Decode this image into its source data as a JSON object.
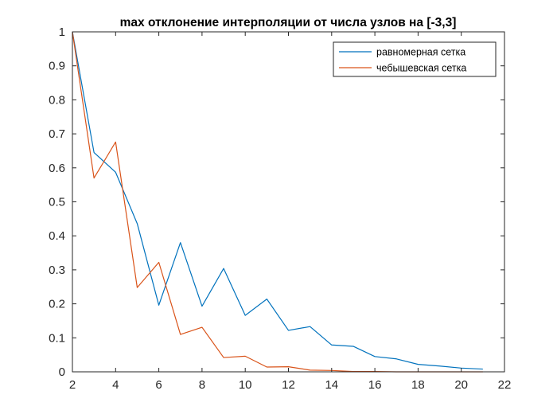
{
  "chart_data": {
    "type": "line",
    "title": "max отклонение интерполяции от числа узлов на [-3,3]",
    "xlabel": "",
    "ylabel": "",
    "xlim": [
      2,
      22
    ],
    "ylim": [
      0,
      1
    ],
    "xticks": [
      "2",
      "4",
      "6",
      "8",
      "10",
      "12",
      "14",
      "16",
      "18",
      "20",
      "22"
    ],
    "yticks": [
      "0",
      "0.1",
      "0.2",
      "0.3",
      "0.4",
      "0.5",
      "0.6",
      "0.7",
      "0.8",
      "0.9",
      "1"
    ],
    "grid": false,
    "legend_position": "top-right",
    "x": [
      2,
      3,
      4,
      5,
      6,
      7,
      8,
      9,
      10,
      11,
      12,
      13,
      14,
      15,
      16,
      17,
      18,
      19,
      20,
      21
    ],
    "series": [
      {
        "name": "равномерная сетка",
        "color": "#0072BD",
        "values": [
          1.0,
          0.645,
          0.587,
          0.436,
          0.196,
          0.38,
          0.193,
          0.304,
          0.166,
          0.214,
          0.122,
          0.133,
          0.079,
          0.075,
          0.045,
          0.038,
          0.022,
          0.017,
          0.011,
          0.008
        ]
      },
      {
        "name": "чебышевская сетка",
        "color": "#D95319",
        "values": [
          1.0,
          0.57,
          0.676,
          0.248,
          0.322,
          0.11,
          0.131,
          0.042,
          0.046,
          0.014,
          0.015,
          0.005,
          0.004,
          0.001,
          0.001,
          0.0,
          0.0,
          0.0,
          0.0,
          0.0
        ]
      }
    ]
  }
}
